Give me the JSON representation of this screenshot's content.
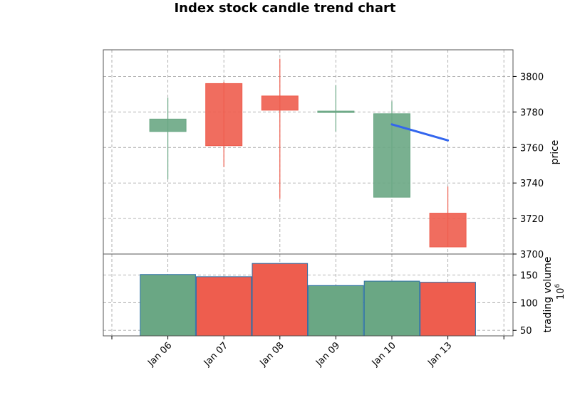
{
  "chart_data": {
    "type": "candlestick",
    "title": "Index stock candle trend chart",
    "categories": [
      "Jan 06",
      "Jan 07",
      "Jan 08",
      "Jan 09",
      "Jan 10",
      "Jan 13"
    ],
    "candles": [
      {
        "date": "Jan 06",
        "open": 3769,
        "close": 3776,
        "high": 3788,
        "low": 3742
      },
      {
        "date": "Jan 07",
        "open": 3796,
        "close": 3761,
        "high": 3797,
        "low": 3749
      },
      {
        "date": "Jan 08",
        "open": 3789,
        "close": 3781,
        "high": 3810,
        "low": 3731
      },
      {
        "date": "Jan 09",
        "open": 3780,
        "close": 3780.5,
        "high": 3795,
        "low": 3769
      },
      {
        "date": "Jan 10",
        "open": 3732,
        "close": 3779,
        "high": 3786,
        "low": 3732
      },
      {
        "date": "Jan 13",
        "open": 3723,
        "close": 3704,
        "high": 3738,
        "low": 3704
      }
    ],
    "trend_line": {
      "x": [
        "Jan 10",
        "Jan 13"
      ],
      "y": [
        3773,
        3764
      ],
      "color": "#3366ee"
    },
    "price_axis": {
      "label": "price",
      "ylim": [
        3700,
        3815
      ],
      "ticks": [
        3700,
        3720,
        3740,
        3760,
        3780,
        3800
      ]
    },
    "volume": {
      "label": "trading volume",
      "unit": "10",
      "unit_exponent": "6",
      "values": [
        151,
        147,
        171,
        131,
        139,
        137
      ],
      "ylim": [
        40,
        188
      ],
      "ticks": [
        50,
        100,
        150
      ]
    },
    "colors": {
      "up": "#6aa784",
      "down": "#ee5d4e",
      "volume_edge": "#2b6fa8"
    },
    "grid": true
  }
}
